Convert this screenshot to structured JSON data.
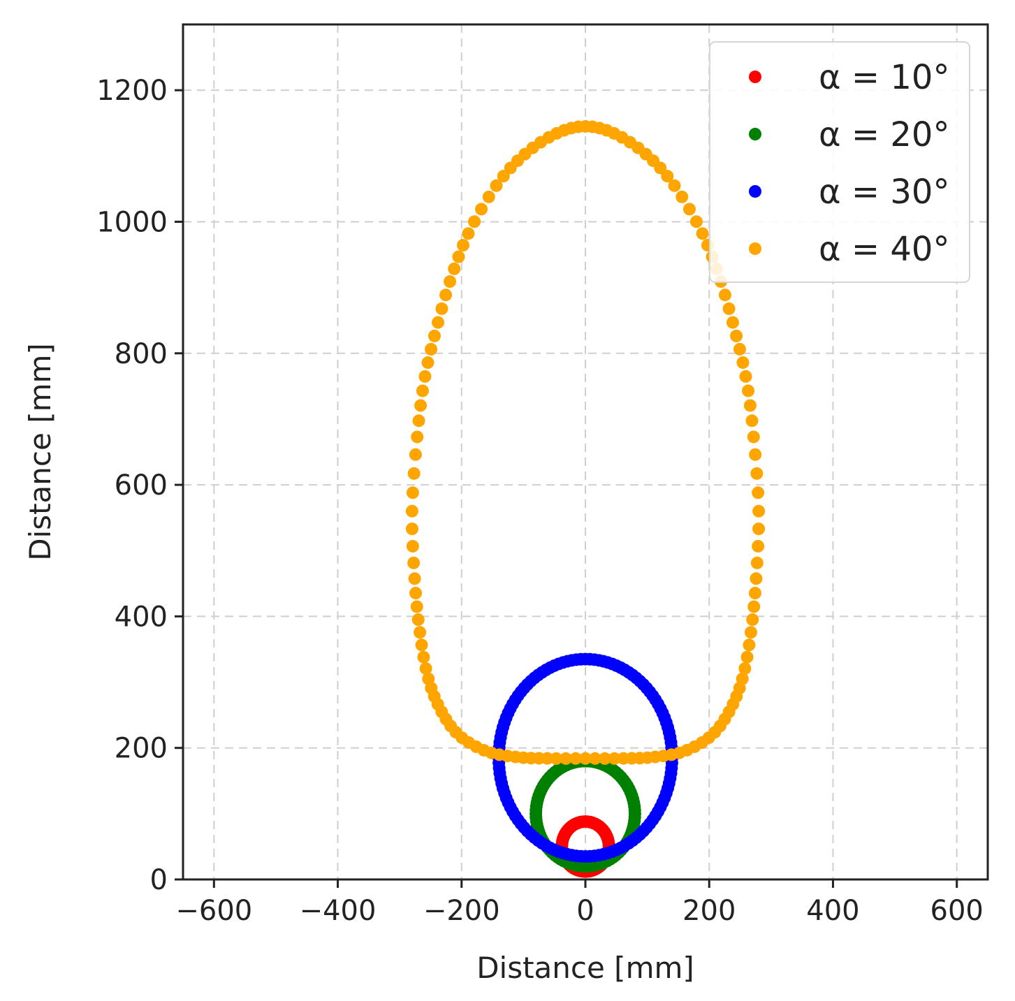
{
  "chart_data": {
    "type": "scatter",
    "title": "",
    "xlabel": "Distance [mm]",
    "ylabel": "Distance [mm]",
    "xlim": [
      -650,
      650
    ],
    "ylim": [
      0,
      1300
    ],
    "xticks": [
      -600,
      -400,
      -200,
      0,
      200,
      400,
      600
    ],
    "xtick_labels": [
      "−600",
      "−400",
      "−200",
      "0",
      "200",
      "400",
      "600"
    ],
    "yticks": [
      0,
      200,
      400,
      600,
      800,
      1000,
      1200
    ],
    "ytick_labels": [
      "0",
      "200",
      "400",
      "600",
      "800",
      "1000",
      "1200"
    ],
    "grid": true,
    "grid_style": "dashed",
    "legend_position": "top-right",
    "series": [
      {
        "name": "α = 10°",
        "color": "#ff0000",
        "shape": "circle",
        "center": [
          0,
          50
        ],
        "semi_axis_x": 38,
        "semi_axis_y": 38,
        "points": 60
      },
      {
        "name": "α = 20°",
        "color": "#008000",
        "shape": "circle",
        "center": [
          0,
          100
        ],
        "semi_axis_x": 80,
        "semi_axis_y": 80,
        "points": 90
      },
      {
        "name": "α = 30°",
        "color": "#0000ff",
        "shape": "ellipse",
        "center": [
          0,
          185
        ],
        "semi_axis_x": 140,
        "semi_axis_y": 150,
        "points": 120
      },
      {
        "name": "α = 40°",
        "color": "#ffa500",
        "shape": "egg",
        "x": [
          0,
          45,
          95,
          140,
          185,
          215,
          240,
          260,
          272,
          280,
          276,
          268,
          255,
          235,
          205,
          160,
          110,
          60,
          0,
          -60,
          -110,
          -160,
          -205,
          -235,
          -255,
          -268,
          -276,
          -280,
          -272,
          -260,
          -240,
          -215,
          -185,
          -140,
          -95,
          -45
        ],
        "y": [
          1145,
          1135,
          1105,
          1060,
          990,
          920,
          840,
          760,
          670,
          560,
          460,
          380,
          310,
          260,
          220,
          195,
          186,
          184,
          184,
          184,
          186,
          195,
          220,
          260,
          310,
          380,
          460,
          560,
          670,
          760,
          840,
          920,
          990,
          1060,
          1105,
          1135
        ],
        "points": 140
      }
    ]
  }
}
